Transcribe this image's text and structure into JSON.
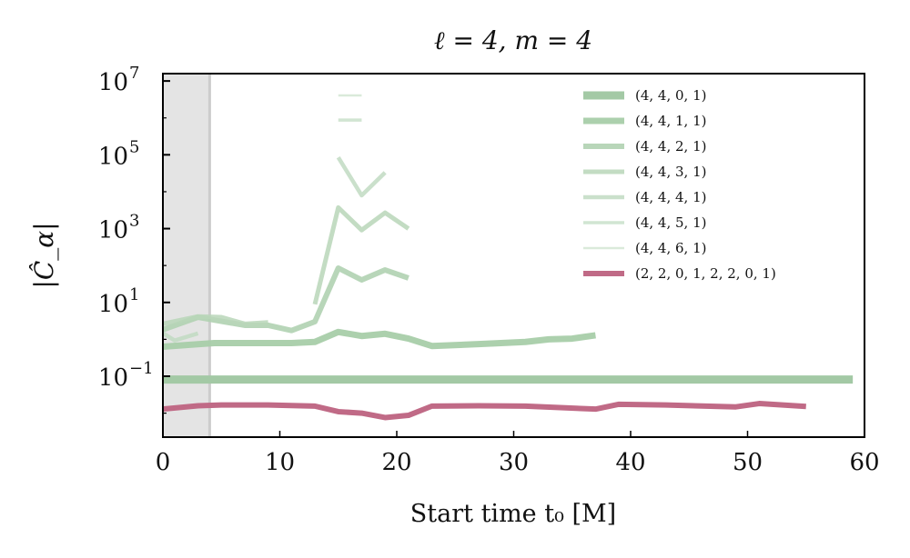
{
  "chart_data": {
    "type": "line",
    "title": "ℓ = 4, m = 4",
    "xlabel": "Start time t₀ [M]",
    "ylabel": "|Ĉ_α|",
    "xlim": [
      0,
      60
    ],
    "ylim_log10": [
      -2.65,
      7.2
    ],
    "yscale": "log",
    "xticks": [
      "0",
      "10",
      "20",
      "30",
      "40",
      "50",
      "60"
    ],
    "yticks": [
      {
        "base": "10",
        "exp": "7"
      },
      {
        "base": "10",
        "exp": "5"
      },
      {
        "base": "10",
        "exp": "3"
      },
      {
        "base": "10",
        "exp": "1"
      },
      {
        "base": "10",
        "exp": "−1"
      }
    ],
    "shaded_region_x": [
      0,
      4
    ],
    "legend_position": "top-right",
    "series": [
      {
        "name": "(4, 4, 0, 1)",
        "color": "#a3c9a5",
        "width": 9,
        "opacity": 1.0,
        "segments": [
          [
            [
              0,
              -1.09
            ],
            [
              59,
              -1.09
            ]
          ]
        ]
      },
      {
        "name": "(4, 4, 1, 1)",
        "color": "#a8cda9",
        "width": 7,
        "opacity": 0.95,
        "segments": [
          [
            [
              0,
              -0.2
            ],
            [
              4.4,
              -0.1
            ],
            [
              11,
              -0.1
            ],
            [
              13,
              -0.07
            ],
            [
              15,
              0.2
            ],
            [
              17,
              0.09
            ],
            [
              19,
              0.15
            ],
            [
              21,
              0.02
            ],
            [
              23,
              -0.18
            ],
            [
              27,
              -0.13
            ],
            [
              31,
              -0.07
            ],
            [
              33,
              0.0
            ],
            [
              35,
              0.02
            ],
            [
              37,
              0.11
            ]
          ]
        ]
      },
      {
        "name": "(4, 4, 2, 1)",
        "color": "#b0d2b1",
        "width": 6,
        "opacity": 0.9,
        "segments": [
          [
            [
              0,
              0.26
            ],
            [
              3,
              0.6
            ],
            [
              7,
              0.38
            ],
            [
              9,
              0.38
            ],
            [
              11,
              0.24
            ],
            [
              13,
              0.48
            ],
            [
              15,
              1.93
            ],
            [
              17,
              1.61
            ],
            [
              19,
              1.88
            ],
            [
              21,
              1.66
            ]
          ]
        ]
      },
      {
        "name": "(4, 4, 3, 1)",
        "color": "#b8d6b9",
        "width": 5,
        "opacity": 0.85,
        "segments": [
          [
            [
              0,
              0.42
            ],
            [
              3,
              0.62
            ],
            [
              5,
              0.6
            ],
            [
              7,
              0.42
            ],
            [
              9,
              0.46
            ]
          ],
          [
            [
              13,
              0.95
            ],
            [
              15,
              3.57
            ],
            [
              17,
              2.96
            ],
            [
              19,
              3.43
            ],
            [
              21,
              3.0
            ]
          ]
        ]
      },
      {
        "name": "(4, 4, 4, 1)",
        "color": "#c1dbc2",
        "width": 4.5,
        "opacity": 0.85,
        "segments": [
          [
            [
              0,
              0.17
            ],
            [
              1,
              -0.03
            ],
            [
              3,
              0.16
            ]
          ],
          [
            [
              15,
              4.93
            ],
            [
              17,
              3.9
            ],
            [
              19,
              4.52
            ]
          ]
        ]
      },
      {
        "name": "(4, 4, 5, 1)",
        "color": "#c9e0ca",
        "width": 3.5,
        "opacity": 0.85,
        "segments": [
          [
            [
              15,
              5.94
            ],
            [
              17,
              5.94
            ]
          ]
        ]
      },
      {
        "name": "(4, 4, 6, 1)",
        "color": "#d3e6d4",
        "width": 2.5,
        "opacity": 0.85,
        "segments": [
          [
            [
              15,
              6.61
            ],
            [
              17,
              6.61
            ]
          ]
        ]
      },
      {
        "name": "(2, 2, 0, 1, 2, 2, 0, 1)",
        "color": "#c06a86",
        "width": 6,
        "opacity": 1.0,
        "segments": [
          [
            [
              0,
              -1.89
            ],
            [
              3,
              -1.8
            ],
            [
              5,
              -1.78
            ],
            [
              9,
              -1.78
            ],
            [
              13,
              -1.81
            ],
            [
              15,
              -1.96
            ],
            [
              17,
              -2.0
            ],
            [
              19,
              -2.12
            ],
            [
              21,
              -2.06
            ],
            [
              23,
              -1.81
            ],
            [
              27,
              -1.8
            ],
            [
              31,
              -1.81
            ],
            [
              37,
              -1.89
            ],
            [
              39,
              -1.76
            ],
            [
              43,
              -1.78
            ],
            [
              49,
              -1.83
            ],
            [
              51,
              -1.74
            ],
            [
              55,
              -1.82
            ]
          ]
        ]
      }
    ]
  }
}
